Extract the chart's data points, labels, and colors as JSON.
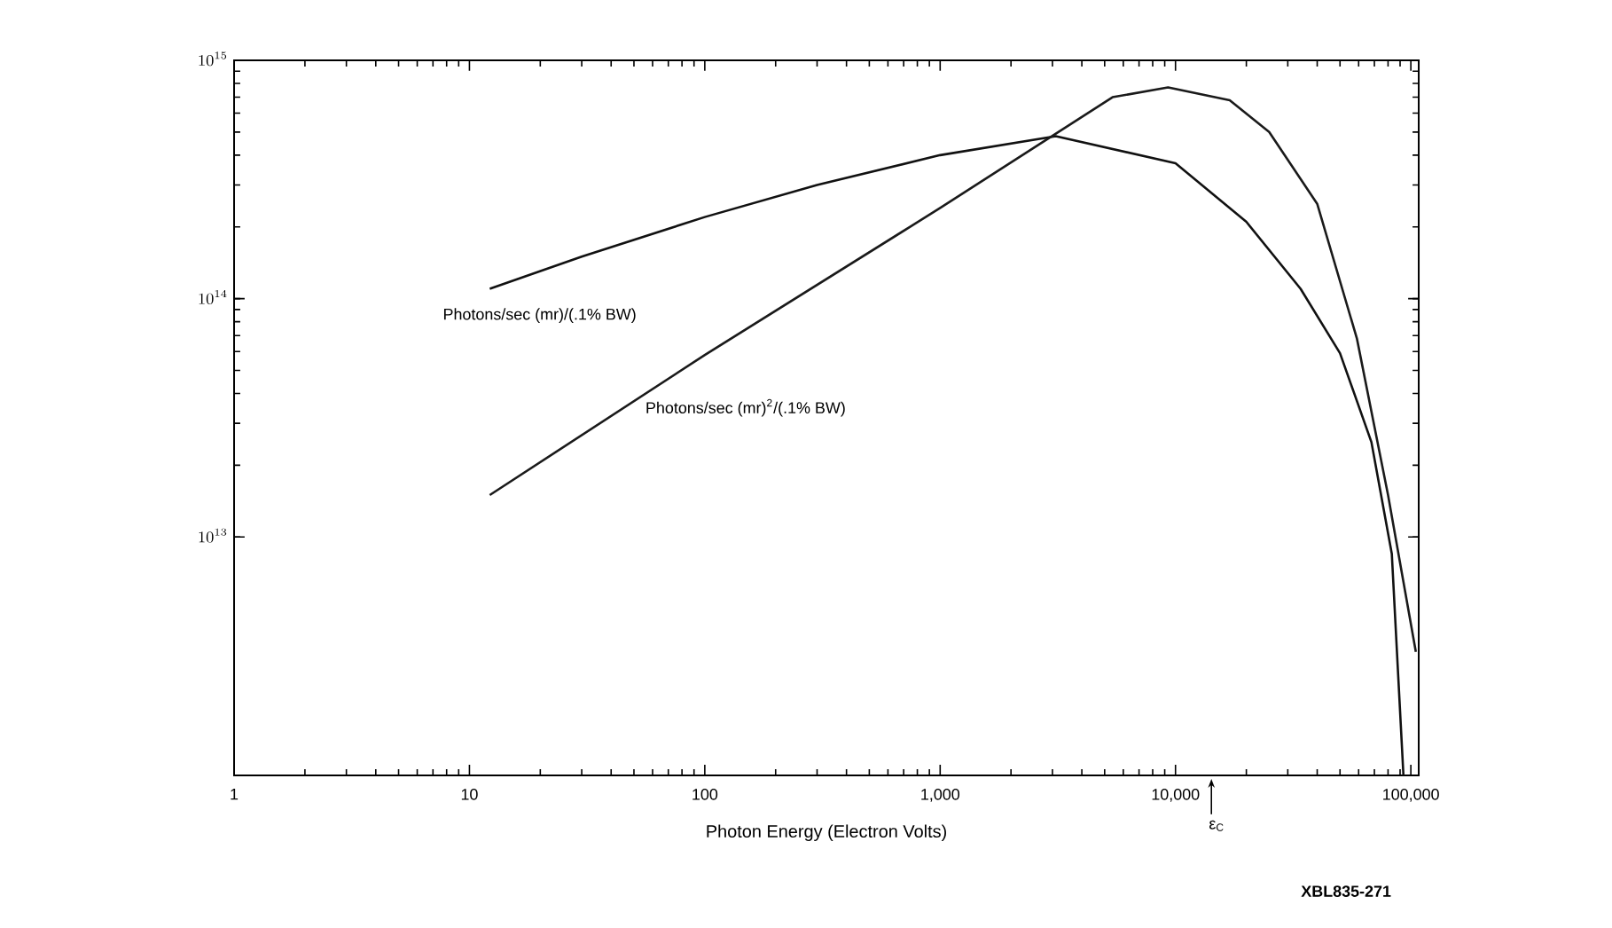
{
  "chart_data": {
    "type": "line",
    "xlabel": "Photon Energy (Electron Volts)",
    "log": "xy",
    "xlim": [
      1,
      108000
    ],
    "ylim": [
      1000000000000.0,
      1000000000000000.0
    ],
    "xticks": [
      1,
      10,
      100,
      {
        "value": 1000,
        "label": "1,000"
      },
      {
        "value": 10000,
        "label": "10,000"
      },
      {
        "value": 100000,
        "label": "100,000"
      }
    ],
    "yticks": [
      {
        "value": 10000000000000.0,
        "label": "10^{13}"
      },
      {
        "value": 100000000000000.0,
        "label": "10^{14}"
      },
      {
        "value": 1000000000000000.0,
        "label": "10^{15}"
      }
    ],
    "series": [
      {
        "name": "Photons/sec (mr)/(.1% BW)",
        "color": "#111111",
        "x": [
          12.2,
          30,
          100,
          300,
          1000,
          3100,
          10000,
          20000,
          34000,
          50000,
          68000,
          83000,
          93000
        ],
        "values": [
          110000000000000.0,
          150000000000000.0,
          220000000000000.0,
          300000000000000.0,
          400000000000000.0,
          480000000000000.0,
          370000000000000.0,
          210000000000000.0,
          110000000000000.0,
          59000000000000.0,
          25000000000000.0,
          8500000000000.0,
          1000000000000.0
        ]
      },
      {
        "name": "Photons/sec (mr)$^{2}$/(.1% BW)",
        "color": "#1a1a1a",
        "x": [
          12.2,
          100,
          1000,
          5400,
          9300,
          17000,
          25000,
          40000,
          59000,
          80000,
          105000
        ],
        "values": [
          15000000000000.0,
          58000000000000.0,
          240000000000000.0,
          700000000000000.0,
          770000000000000.0,
          680000000000000.0,
          500000000000000.0,
          250000000000000.0,
          68000000000000.0,
          15000000000000.0,
          3300000000000.0
        ]
      }
    ],
    "annotations": [
      "ε$_{C}$",
      "XBL835-271"
    ]
  }
}
